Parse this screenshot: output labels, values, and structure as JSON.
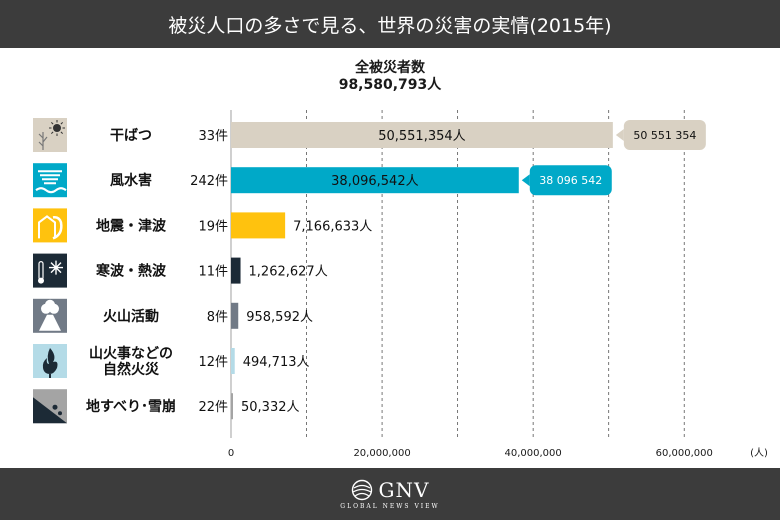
{
  "header": {
    "title": "被災人口の多さで見る、世界の災害の実情(2015年)"
  },
  "total": {
    "label": "全被災者数",
    "value": "98,580,793人"
  },
  "footer": {
    "logo_text": "GNV",
    "logo_sub": "GLOBAL NEWS VIEW"
  },
  "chart_data": {
    "type": "bar",
    "orientation": "horizontal",
    "title": "全被災者数",
    "subtitle": "98,580,793人",
    "xlim": [
      0,
      65000000
    ],
    "xticks": [
      0,
      20000000,
      40000000,
      60000000
    ],
    "xtick_labels": [
      "0",
      "20,000,000",
      "40,000,000",
      "60,000,000"
    ],
    "xunit": "(人)",
    "grid": "vertical dashed every 10,000,000",
    "categories": [
      {
        "label": "干ばつ",
        "count": "33件",
        "value": 50551354,
        "value_label": "50,551,354人",
        "callout": "50 551 354",
        "color": "#d9d1c3",
        "icon": "drought-icon"
      },
      {
        "label": "風水害",
        "count": "242件",
        "value": 38096542,
        "value_label": "38,096,542人",
        "callout": "38 096 542",
        "color": "#00a9c8",
        "icon": "storm-flood-icon"
      },
      {
        "label": "地震・津波",
        "count": "19件",
        "value": 7166633,
        "value_label": "7,166,633人",
        "color": "#ffc20e",
        "icon": "earthquake-tsunami-icon"
      },
      {
        "label": "寒波・熱波",
        "count": "11件",
        "value": 1262627,
        "value_label": "1,262,627人",
        "color": "#1c2a36",
        "icon": "cold-heat-wave-icon"
      },
      {
        "label": "火山活動",
        "count": "8件",
        "value": 958592,
        "value_label": "958,592人",
        "color": "#717a86",
        "icon": "volcano-icon"
      },
      {
        "label": "山火事などの\n自然火災",
        "count": "12件",
        "value": 494713,
        "value_label": "494,713人",
        "color": "#b4dbe7",
        "icon": "wildfire-icon"
      },
      {
        "label": "地すべり･雪崩",
        "count": "22件",
        "value": 50332,
        "value_label": "50,332人",
        "color": "#a4a4a4",
        "icon": "landslide-icon"
      }
    ]
  }
}
